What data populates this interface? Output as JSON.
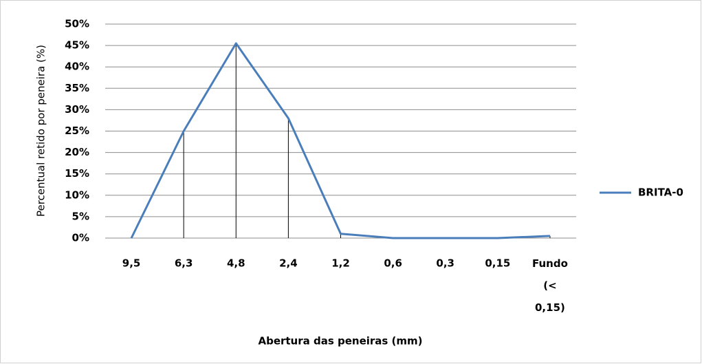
{
  "chart_data": {
    "type": "line",
    "y_label": "Percentual retido por peneira (%)",
    "x_label": "Abertura das peneiras (mm)",
    "categories": [
      "9,5",
      "6,3",
      "4,8",
      "2,4",
      "1,2",
      "0,6",
      "0,3",
      "0,15",
      "Fundo (< 0,15)"
    ],
    "series": [
      {
        "name": "BRITA-0",
        "color": "#4a7ebb",
        "values": [
          0,
          25,
          45.5,
          28,
          1,
          0,
          0,
          0,
          0.5
        ]
      }
    ],
    "ylim": [
      0,
      50
    ],
    "yticks": [
      {
        "value": 0,
        "label": "0%"
      },
      {
        "value": 5,
        "label": "5%"
      },
      {
        "value": 10,
        "label": "10%"
      },
      {
        "value": 15,
        "label": "15%"
      },
      {
        "value": 20,
        "label": "20%"
      },
      {
        "value": 25,
        "label": "25%"
      },
      {
        "value": 30,
        "label": "30%"
      },
      {
        "value": 35,
        "label": "35%"
      },
      {
        "value": 40,
        "label": "40%"
      },
      {
        "value": 45,
        "label": "45%"
      },
      {
        "value": 50,
        "label": "50%"
      }
    ],
    "grid": true,
    "drop_lines": true,
    "legend": "right"
  }
}
